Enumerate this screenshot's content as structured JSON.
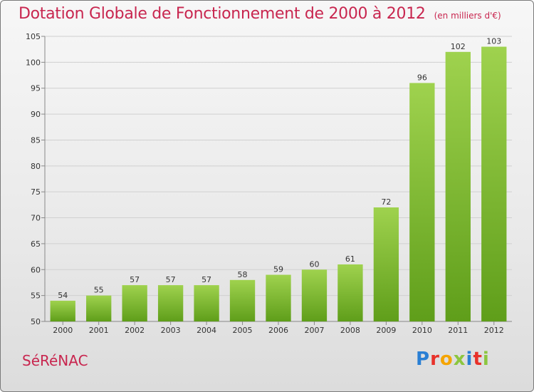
{
  "header": {
    "title": "Dotation Globale de Fonctionnement de 2000 à 2012",
    "subtitle": "(en milliers d'€)"
  },
  "footer": {
    "place": "SéRéNAC",
    "brand": "Proxiti",
    "brand_colors": [
      "#2a7fd4",
      "#e8312a",
      "#f5a400",
      "#8cc63f",
      "#2a7fd4",
      "#e8312a",
      "#8cc63f"
    ]
  },
  "chart_data": {
    "type": "bar",
    "title": "Dotation Globale de Fonctionnement de 2000 à 2012",
    "subtitle": "(en milliers d'€)",
    "categories": [
      "2000",
      "2001",
      "2002",
      "2003",
      "2004",
      "2005",
      "2006",
      "2007",
      "2008",
      "2009",
      "2010",
      "2011",
      "2012"
    ],
    "values": [
      54,
      55,
      57,
      57,
      57,
      58,
      59,
      60,
      61,
      72,
      96,
      102,
      103
    ],
    "ylim": [
      50,
      105
    ],
    "yticks": [
      50,
      55,
      60,
      65,
      70,
      75,
      80,
      85,
      90,
      95,
      100,
      105
    ],
    "grid": true,
    "bar_color_top": "#9fd24e",
    "bar_color_bottom": "#5f9e1a"
  }
}
